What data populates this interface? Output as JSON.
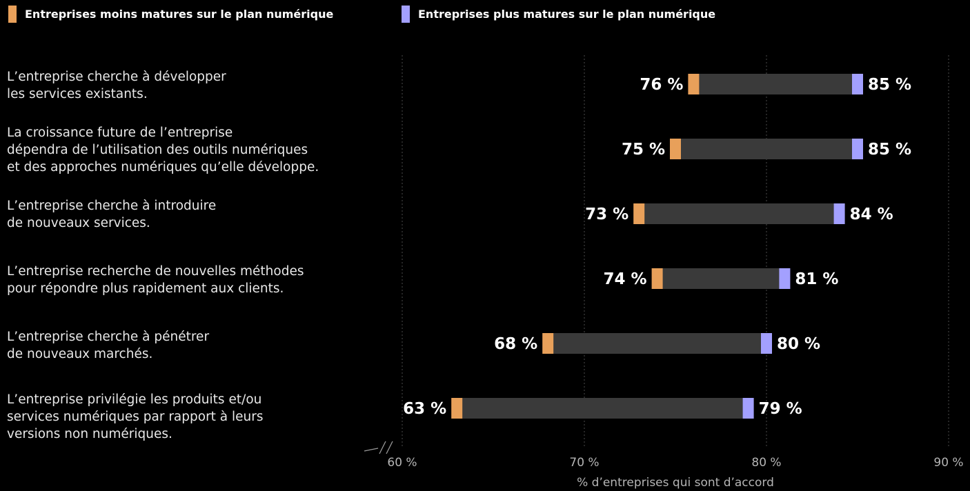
{
  "legend": {
    "less_mature": "Entreprises moins matures sur le plan numérique",
    "more_mature": "Entreprises plus matures sur le plan numérique"
  },
  "colors": {
    "less_mature": "#E8A05A",
    "more_mature": "#A3A0FF",
    "connector": "#3A3A3A",
    "grid": "#4D4D4D",
    "background": "#000000"
  },
  "chart_data": {
    "type": "dumbbell",
    "categories": [
      "L’entreprise cherche à développer\nles services existants.",
      "La croissance future de l’entreprise\ndépendra de l’utilisation des outils numériques\net des approches numériques qu’elle développe.",
      "L’entreprise cherche à introduire\nde nouveaux services.",
      "L’entreprise recherche de nouvelles méthodes\npour répondre plus rapidement aux clients.",
      "L’entreprise cherche à pénétrer\nde nouveaux marchés.",
      "L’entreprise privilégie les produits et/ou\nservices numériques par rapport à leurs\nversions non numériques."
    ],
    "series": [
      {
        "name": "Entreprises moins matures sur le plan numérique",
        "values": [
          76,
          75,
          73,
          74,
          68,
          63
        ],
        "labels": [
          "76 %",
          "75 %",
          "73 %",
          "74 %",
          "68 %",
          "63 %"
        ]
      },
      {
        "name": "Entreprises plus matures sur le plan numérique",
        "values": [
          85,
          85,
          84,
          81,
          80,
          79
        ],
        "labels": [
          "85 %",
          "85 %",
          "84 %",
          "81 %",
          "80 %",
          "79 %"
        ]
      }
    ],
    "xlim": [
      60,
      90
    ],
    "xticks": [
      60,
      70,
      80,
      90
    ],
    "xtick_labels": [
      "60 %",
      "70 %",
      "80 %",
      "90 %"
    ],
    "xlabel": "% d’entreprises qui sont d’accord",
    "axis_break": true,
    "grid": "vertical dashed"
  }
}
